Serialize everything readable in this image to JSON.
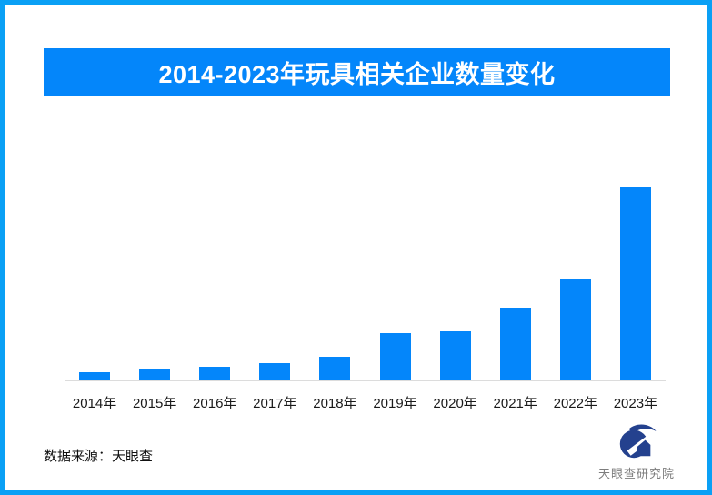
{
  "page": {
    "background": "#ffffff",
    "border_color": "#0aa0f5"
  },
  "header": {
    "title": "2014-2023年玩具相关企业数量变化",
    "banner_color": "#0486fa",
    "title_color": "#ffffff"
  },
  "chart_data": {
    "type": "bar",
    "title": "2014-2023年玩具相关企业数量变化",
    "categories": [
      "2014年",
      "2015年",
      "2016年",
      "2017年",
      "2018年",
      "2019年",
      "2020年",
      "2021年",
      "2022年",
      "2023年"
    ],
    "values": [
      9,
      12,
      15,
      19,
      26,
      52,
      54,
      80,
      111,
      213
    ],
    "values_note": "no value axis, gridlines or data labels are shown in the image; values are relative bar heights (px) estimated from the rendering",
    "bar_color": "#0486fa",
    "axis_line_color": "#dcdcdc",
    "tick_label_color": "#1a1a1a",
    "xlabel": "",
    "ylabel": "",
    "grid": false,
    "legend": false,
    "value_axis_visible": false
  },
  "footer": {
    "source_text": "数据来源：天眼查",
    "logo_text": "天眼查研究院",
    "logo_mark_color": "#24418e",
    "logo_text_color": "#7d7d7d"
  }
}
